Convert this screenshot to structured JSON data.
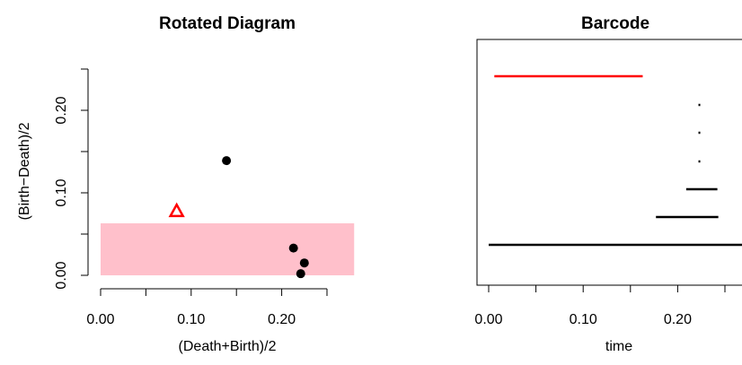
{
  "chart_data": [
    {
      "type": "scatter",
      "title": "Rotated Diagram",
      "xlabel": "(Death+Birth)/2",
      "ylabel": "(Birth−Death)/2",
      "x_ticks": [
        0.0,
        0.05,
        0.1,
        0.15,
        0.2,
        0.25
      ],
      "x_tick_labels": [
        "0.00",
        "0.10",
        "0.20"
      ],
      "x_tick_label_values": [
        0.0,
        0.1,
        0.2
      ],
      "y_ticks": [
        0.0,
        0.05,
        0.1,
        0.15,
        0.2,
        0.25
      ],
      "y_tick_labels": [
        "0.00",
        "0.10",
        "0.20"
      ],
      "y_tick_label_values": [
        0.0,
        0.1,
        0.2
      ],
      "xlim": [
        0.0,
        0.28
      ],
      "ylim": [
        0.0,
        0.25
      ],
      "band": {
        "y_from": 0.0,
        "y_to": 0.063,
        "color": "#ffc0cb"
      },
      "points": [
        {
          "x": 0.139,
          "y": 0.139,
          "shape": "circle",
          "color": "#000000"
        },
        {
          "x": 0.213,
          "y": 0.033,
          "shape": "circle",
          "color": "#000000"
        },
        {
          "x": 0.225,
          "y": 0.015,
          "shape": "circle",
          "color": "#000000"
        },
        {
          "x": 0.221,
          "y": 0.002,
          "shape": "circle",
          "color": "#000000"
        },
        {
          "x": 0.084,
          "y": 0.078,
          "shape": "triangle",
          "color": "#ff0000"
        }
      ]
    },
    {
      "type": "barcode",
      "title": "Barcode",
      "xlabel": "time",
      "x_ticks": [
        0.0,
        0.05,
        0.1,
        0.15,
        0.2,
        0.25
      ],
      "x_tick_labels": [
        "0.00",
        "0.10",
        "0.20"
      ],
      "x_tick_label_values": [
        0.0,
        0.1,
        0.2
      ],
      "xlim": [
        0.0,
        0.28
      ],
      "bars": [
        {
          "start": 0.006,
          "end": 0.163,
          "color": "#ff0000"
        },
        {
          "start": 0.222,
          "end": 0.223,
          "color": "#000000"
        },
        {
          "start": 0.222,
          "end": 0.223,
          "color": "#000000"
        },
        {
          "start": 0.222,
          "end": 0.223,
          "color": "#000000"
        },
        {
          "start": 0.209,
          "end": 0.242,
          "color": "#000000"
        },
        {
          "start": 0.177,
          "end": 0.243,
          "color": "#000000"
        },
        {
          "start": 0.0,
          "end": 0.28,
          "color": "#000000"
        }
      ]
    }
  ]
}
